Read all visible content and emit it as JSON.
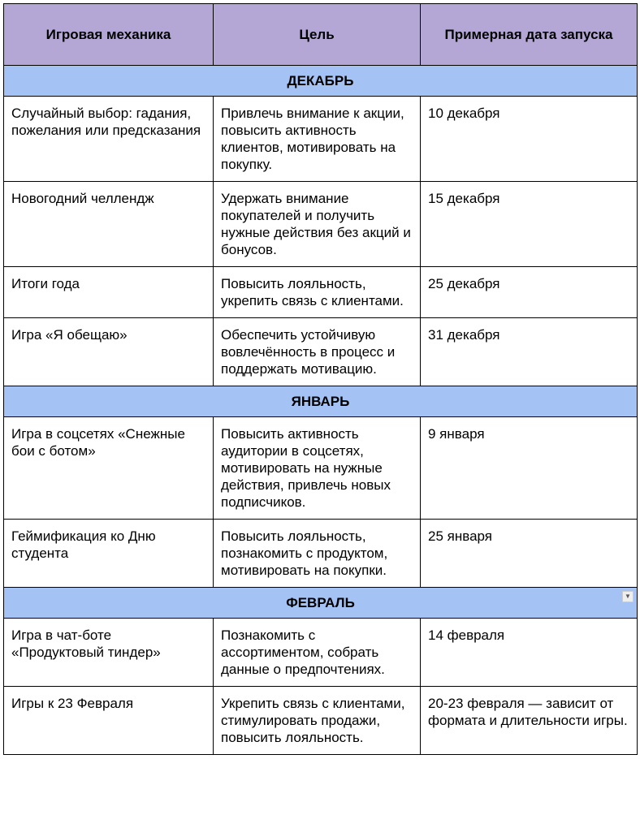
{
  "header": [
    "Игровая механика",
    "Цель",
    "Примерная дата запуска"
  ],
  "colors": {
    "header_bg": "#b4a7d6",
    "month_bg": "#a4c2f4"
  },
  "sections": [
    {
      "month": "ДЕКАБРЬ",
      "rows": [
        [
          "Случайный выбор: гадания, пожелания или предсказания",
          "Привлечь внимание к акции, повысить активность клиентов, мотивировать на покупку.",
          "10 декабря"
        ],
        [
          "Новогодний челлендж",
          "Удержать внимание покупателей и получить нужные действия без акций и бонусов.",
          "15 декабря"
        ],
        [
          "Итоги года",
          "Повысить лояльность, укрепить связь с клиентами.",
          "25 декабря"
        ],
        [
          "Игра «Я обещаю»",
          "Обеспечить устойчивую вовлечённость в процесс и поддержать мотивацию.",
          "31 декабря"
        ]
      ]
    },
    {
      "month": "ЯНВАРЬ",
      "rows": [
        [
          "Игра в соцсетях «Снежные бои с ботом»",
          "Повысить активность аудитории в соцсетях, мотивировать на нужные действия, привлечь новых подписчиков.",
          "9 января"
        ],
        [
          "Геймификация ко Дню студента",
          "Повысить лояльность, познакомить с продуктом, мотивировать на покупки.",
          "25 января"
        ]
      ]
    },
    {
      "month": "ФЕВРАЛЬ",
      "dropdown_icon": "triangle-down",
      "rows": [
        [
          "Игра в чат-боте «Продуктовый тиндер»",
          "Познакомить с ассортиментом, собрать данные о предпочтениях.",
          "14 февраля"
        ],
        [
          "Игры к 23 Февраля",
          "Укрепить связь с клиентами, стимулировать продажи, повысить лояльность.",
          "20-23 февраля — зависит от формата и длительности игры."
        ]
      ]
    }
  ]
}
